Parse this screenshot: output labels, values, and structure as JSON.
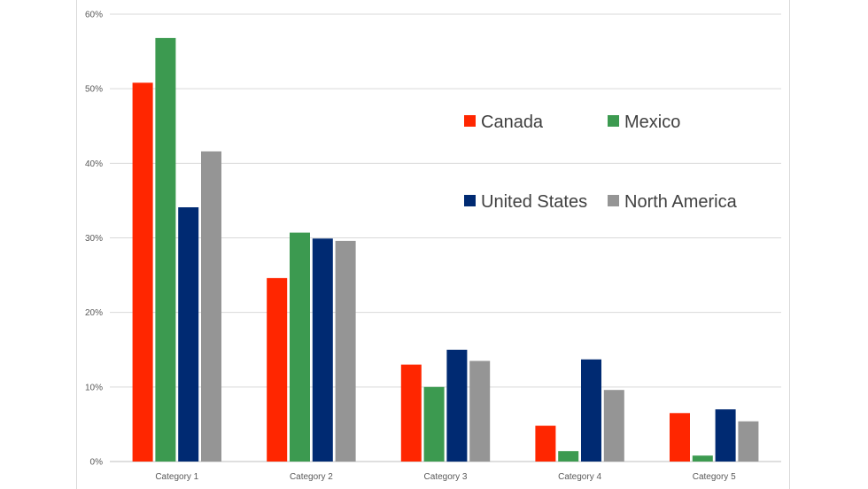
{
  "chart_data": {
    "type": "bar",
    "categories": [
      "Category 1",
      "Category 2",
      "Category 3",
      "Category 4",
      "Category 5"
    ],
    "series": [
      {
        "name": "Canada",
        "color": "#ff2600",
        "values": [
          0.508,
          0.246,
          0.13,
          0.048,
          0.065
        ]
      },
      {
        "name": "Mexico",
        "color": "#3c9a50",
        "values": [
          0.568,
          0.307,
          0.1,
          0.014,
          0.008
        ]
      },
      {
        "name": "United States",
        "color": "#002a72",
        "values": [
          0.341,
          0.299,
          0.15,
          0.137,
          0.07
        ]
      },
      {
        "name": "North America",
        "color": "#959595",
        "values": [
          0.416,
          0.296,
          0.135,
          0.096,
          0.054
        ]
      }
    ],
    "yticks": [
      "0%",
      "10%",
      "20%",
      "30%",
      "40%",
      "50%",
      "60%"
    ],
    "ylim": [
      0,
      0.6
    ],
    "grid": true,
    "legend": "upper-right inside plot, 2x2"
  }
}
